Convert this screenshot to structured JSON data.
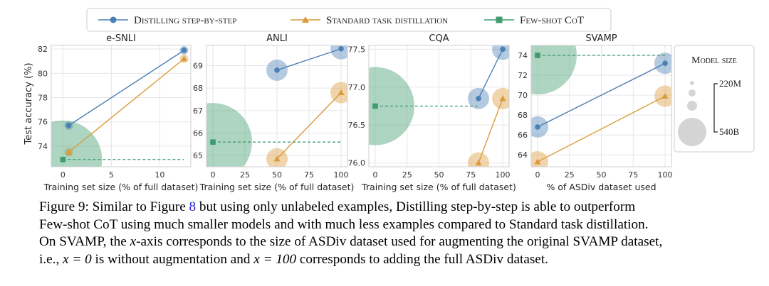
{
  "legend": {
    "entries": [
      {
        "label": "Distilling step-by-step",
        "color": "#4a80b6",
        "marker": "circle"
      },
      {
        "label": "Standard task distillation",
        "color": "#dc9a3a",
        "marker": "triangle"
      },
      {
        "label": "Few-shot CoT",
        "color": "#3e9c6e",
        "marker": "square"
      }
    ]
  },
  "model_size_legend": {
    "title": "Model size",
    "top_label": "220M",
    "bottom_label": "540B"
  },
  "shared_ylabel": "Test accuracy (%)",
  "chart_data": [
    {
      "type": "scatter",
      "title": "e-SNLI",
      "xlabel": "Training set size (% of full dataset)",
      "ylabel": "Test accuracy (%)",
      "xlim": [
        -1.2,
        13.2
      ],
      "ylim": [
        72.3,
        82.3
      ],
      "xticks": [
        0,
        5,
        10
      ],
      "yticks": [
        74,
        76,
        78,
        80,
        82
      ],
      "grid": true,
      "series": [
        {
          "name": "Distilling step-by-step",
          "points": [
            [
              0.6,
              75.7
            ],
            [
              12.5,
              81.9
            ]
          ],
          "sizes": [
            1,
            1
          ]
        },
        {
          "name": "Standard task distillation",
          "points": [
            [
              0.6,
              73.5
            ],
            [
              12.5,
              81.2
            ]
          ],
          "sizes": [
            1,
            1
          ]
        },
        {
          "name": "Few-shot CoT",
          "points": [
            [
              0,
              72.9
            ],
            [
              12.5,
              72.9
            ]
          ],
          "sizes": [
            3,
            null
          ]
        }
      ]
    },
    {
      "type": "scatter",
      "title": "ANLI",
      "xlabel": "Training set size (% of full dataset)",
      "ylabel": "",
      "xlim": [
        -5,
        105
      ],
      "ylim": [
        64.5,
        69.9
      ],
      "xticks": [
        0,
        25,
        50,
        75,
        100
      ],
      "yticks": [
        65,
        66,
        67,
        68,
        69
      ],
      "grid": true,
      "series": [
        {
          "name": "Distilling step-by-step",
          "points": [
            [
              50,
              68.8
            ],
            [
              100,
              69.75
            ]
          ],
          "sizes": [
            2,
            2
          ]
        },
        {
          "name": "Standard task distillation",
          "points": [
            [
              50,
              64.85
            ],
            [
              100,
              67.8
            ]
          ],
          "sizes": [
            2,
            2
          ]
        },
        {
          "name": "Few-shot CoT",
          "points": [
            [
              0,
              65.6
            ],
            [
              100,
              65.6
            ]
          ],
          "sizes": [
            3,
            null
          ]
        }
      ]
    },
    {
      "type": "scatter",
      "title": "CQA",
      "xlabel": "Training set size (% of full dataset)",
      "ylabel": "",
      "xlim": [
        -5,
        105
      ],
      "ylim": [
        75.95,
        77.55
      ],
      "xticks": [
        0,
        25,
        50,
        75,
        100
      ],
      "yticks": [
        76.0,
        76.5,
        77.0,
        77.5
      ],
      "grid": true,
      "series": [
        {
          "name": "Distilling step-by-step",
          "points": [
            [
              81,
              76.85
            ],
            [
              100,
              77.5
            ]
          ],
          "sizes": [
            2,
            2
          ]
        },
        {
          "name": "Standard task distillation",
          "points": [
            [
              81,
              76.0
            ],
            [
              100,
              76.85
            ]
          ],
          "sizes": [
            2,
            2
          ]
        },
        {
          "name": "Few-shot CoT",
          "points": [
            [
              0,
              76.75
            ],
            [
              81,
              76.75
            ]
          ],
          "sizes": [
            3,
            null
          ]
        }
      ]
    },
    {
      "type": "scatter",
      "title": "SVAMP",
      "xlabel": "% of ASDiv dataset used",
      "ylabel": "",
      "xlim": [
        -5,
        105
      ],
      "ylim": [
        62.8,
        75
      ],
      "xticks": [
        0,
        25,
        50,
        75,
        100
      ],
      "yticks": [
        64,
        66,
        68,
        70,
        72,
        74
      ],
      "grid": true,
      "series": [
        {
          "name": "Distilling step-by-step",
          "points": [
            [
              0,
              66.8
            ],
            [
              100,
              73.2
            ]
          ],
          "sizes": [
            2,
            2
          ]
        },
        {
          "name": "Standard task distillation",
          "points": [
            [
              0,
              63.3
            ],
            [
              100,
              69.9
            ]
          ],
          "sizes": [
            2,
            2
          ]
        },
        {
          "name": "Few-shot CoT",
          "points": [
            [
              0,
              74.0
            ],
            [
              100,
              74.0
            ]
          ],
          "sizes": [
            3,
            null
          ]
        }
      ]
    }
  ],
  "caption": {
    "line1_a": "Figure 9: Similar to Figure ",
    "line1_ref": "8",
    "line1_b": " but using only unlabeled examples, Distilling step-by-step is able to outperform",
    "line2": "Few-shot CoT using much smaller models and with much less examples compared to Standard task distillation.",
    "line3_a": "On SVAMP, the ",
    "line3_x": "x",
    "line3_b": "-axis corresponds to the size of ASDiv dataset used for augmenting the original SVAMP dataset,",
    "line4_a": "i.e., ",
    "line4_eq1": "x = 0",
    "line4_b": " is without augmentation and ",
    "line4_eq2": "x = 100",
    "line4_c": " corresponds to adding the full ASDiv dataset."
  }
}
